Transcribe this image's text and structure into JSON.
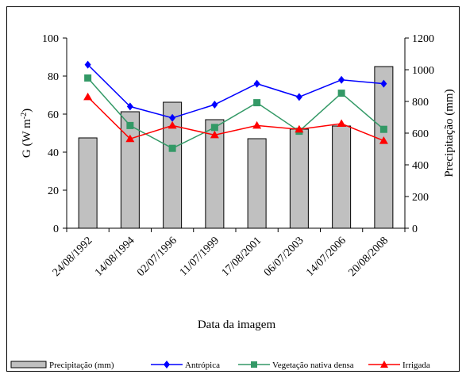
{
  "chart_data": {
    "type": "bar+line",
    "categories": [
      "24/08/1992",
      "14/08/1994",
      "02/07/1996",
      "11/07/1999",
      "17/08/2001",
      "06/07/2003",
      "14/07/2006",
      "20/08/2008"
    ],
    "xlabel": "Data da imagem",
    "ylabel_left": "G (W m",
    "ylabel_left_sup": "-2",
    "ylabel_left_close": ")",
    "ylabel_right": "Precipitação (mm)",
    "ylim_left": [
      0,
      100
    ],
    "yticks_left": [
      "0",
      "20",
      "40",
      "60",
      "80",
      "100"
    ],
    "ylim_right": [
      0,
      1200
    ],
    "yticks_right": [
      "0",
      "200",
      "400",
      "600",
      "800",
      "1000",
      "1200"
    ],
    "grid": false,
    "legend_position": "bottom",
    "bar_series": {
      "name": "Precipitação (mm)",
      "axis": "right",
      "values": [
        570,
        735,
        795,
        685,
        565,
        625,
        645,
        1020
      ],
      "color": "#c0c0c0"
    },
    "series": [
      {
        "name": "Antrópica",
        "axis": "left",
        "marker": "diamond",
        "color": "#0000ff",
        "values": [
          86,
          64,
          58,
          65,
          76,
          69,
          78,
          76
        ]
      },
      {
        "name": "Vegetação nativa densa",
        "axis": "left",
        "marker": "square",
        "color": "#339966",
        "values": [
          79,
          54,
          42,
          53,
          66,
          51,
          71,
          52
        ]
      },
      {
        "name": "Irrigada",
        "axis": "left",
        "marker": "triangle",
        "color": "#ff0000",
        "values": [
          69,
          47,
          54,
          49,
          54,
          52,
          55,
          46
        ]
      }
    ]
  }
}
